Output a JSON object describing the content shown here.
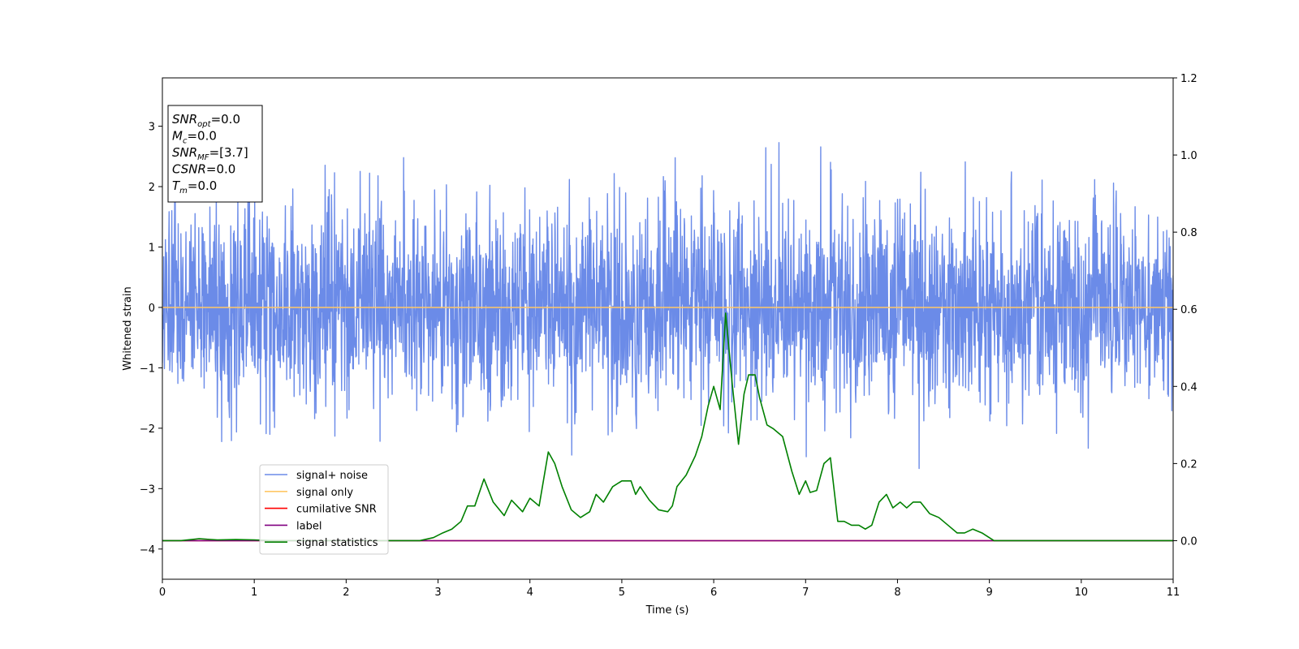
{
  "chart_data": {
    "type": "line",
    "xlabel": "Time (s)",
    "ylabel": "Whitened strain",
    "xlim": [
      0,
      11
    ],
    "ylim": [
      -4.5,
      3.8
    ],
    "y2lim": [
      -0.1,
      1.2
    ],
    "x_ticks": [
      0,
      1,
      2,
      3,
      4,
      5,
      6,
      7,
      8,
      9,
      10,
      11
    ],
    "y_ticks": [
      -4,
      -3,
      -2,
      -1,
      0,
      1,
      2,
      3
    ],
    "y_tick_labels": [
      "−4",
      "−3",
      "−2",
      "−1",
      "0",
      "1",
      "2",
      "3"
    ],
    "y2_ticks": [
      0.0,
      0.2,
      0.4,
      0.6,
      0.8,
      1.0,
      1.2
    ],
    "y2_tick_labels": [
      "0.0",
      "0.2",
      "0.4",
      "0.6",
      "0.8",
      "1.0",
      "1.2"
    ],
    "legend_position": "lower-left",
    "grid": false,
    "noise": {
      "mean": 0,
      "std": 0.85,
      "clip_min": -4.15,
      "clip_max": 3.42,
      "samples": 3000
    },
    "series": [
      {
        "name": "signal+ noise",
        "color": "#6b8be8",
        "axis": "left",
        "kind": "noise"
      },
      {
        "name": "signal only",
        "color": "#ffc766",
        "axis": "left",
        "kind": "constant",
        "value": 0.0
      },
      {
        "name": "cumilative SNR",
        "color": "#ff0000",
        "axis": "right",
        "kind": "constant",
        "value": 0.0
      },
      {
        "name": "label",
        "color": "#800080",
        "axis": "right",
        "kind": "constant",
        "value": 0.0
      },
      {
        "name": "signal statistics",
        "color": "#008000",
        "axis": "right",
        "kind": "line",
        "x": [
          0,
          0.2,
          0.4,
          0.6,
          0.8,
          1.0,
          1.2,
          1.4,
          1.6,
          1.8,
          2.0,
          2.2,
          2.4,
          2.6,
          2.8,
          2.95,
          3.05,
          3.15,
          3.25,
          3.32,
          3.4,
          3.5,
          3.6,
          3.72,
          3.8,
          3.92,
          4.0,
          4.1,
          4.2,
          4.27,
          4.35,
          4.45,
          4.55,
          4.65,
          4.72,
          4.8,
          4.9,
          5.0,
          5.1,
          5.15,
          5.2,
          5.3,
          5.4,
          5.5,
          5.55,
          5.6,
          5.7,
          5.8,
          5.87,
          5.94,
          6.0,
          6.07,
          6.13,
          6.2,
          6.27,
          6.33,
          6.38,
          6.45,
          6.5,
          6.58,
          6.65,
          6.75,
          6.85,
          6.93,
          7.0,
          7.05,
          7.12,
          7.2,
          7.27,
          7.35,
          7.42,
          7.5,
          7.58,
          7.65,
          7.72,
          7.8,
          7.88,
          7.95,
          8.03,
          8.1,
          8.17,
          8.25,
          8.35,
          8.45,
          8.55,
          8.65,
          8.73,
          8.82,
          8.92,
          9.05,
          9.5,
          10.0,
          11.0
        ],
        "y": [
          0.0,
          0.0,
          0.005,
          0.002,
          0.003,
          0.002,
          0.0,
          0.0,
          0.0,
          0.0,
          0.0,
          0.0,
          0.0,
          0.0,
          0.0,
          0.008,
          0.02,
          0.03,
          0.05,
          0.09,
          0.09,
          0.16,
          0.1,
          0.065,
          0.105,
          0.075,
          0.11,
          0.09,
          0.23,
          0.2,
          0.14,
          0.08,
          0.06,
          0.075,
          0.12,
          0.1,
          0.14,
          0.155,
          0.155,
          0.12,
          0.14,
          0.105,
          0.08,
          0.075,
          0.09,
          0.14,
          0.17,
          0.22,
          0.27,
          0.35,
          0.4,
          0.34,
          0.59,
          0.41,
          0.25,
          0.38,
          0.43,
          0.43,
          0.37,
          0.3,
          0.29,
          0.27,
          0.18,
          0.12,
          0.155,
          0.125,
          0.13,
          0.2,
          0.215,
          0.05,
          0.05,
          0.04,
          0.04,
          0.03,
          0.04,
          0.1,
          0.12,
          0.085,
          0.1,
          0.085,
          0.1,
          0.1,
          0.07,
          0.06,
          0.04,
          0.02,
          0.02,
          0.03,
          0.02,
          0.0,
          0.0,
          0.0,
          0.0
        ]
      }
    ],
    "annotation": [
      {
        "base": "SNR",
        "sub": "opt",
        "rest": "=0.0"
      },
      {
        "base": "M",
        "sub": "c",
        "rest": "=0.0"
      },
      {
        "base": "SNR",
        "sub": "MF",
        "rest": "=[3.7]"
      },
      {
        "base": "CSNR",
        "sub": "",
        "rest": "=0.0"
      },
      {
        "base": "T",
        "sub": "m",
        "rest": "=0.0"
      }
    ]
  }
}
